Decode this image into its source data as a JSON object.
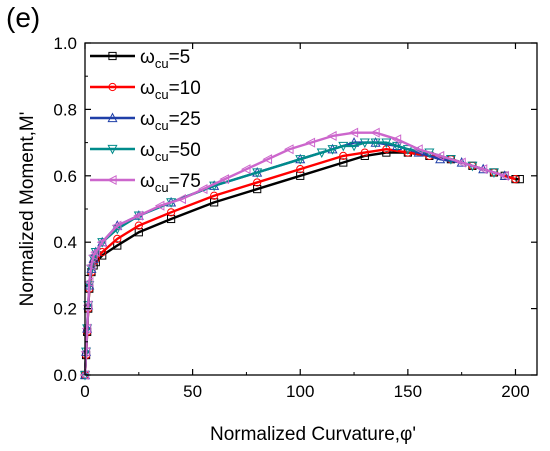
{
  "panel_label": "(e)",
  "chart_data": {
    "type": "line",
    "title": "",
    "xlabel": "Normalized Curvature,φ'",
    "ylabel": "Normalized Moment,M'",
    "xlim": [
      0,
      210
    ],
    "ylim": [
      0,
      1.0
    ],
    "xticks": [
      0,
      50,
      100,
      150,
      200
    ],
    "yticks": [
      0.0,
      0.2,
      0.4,
      0.6,
      0.8,
      1.0
    ],
    "xtick_labels": [
      "0",
      "50",
      "100",
      "150",
      "200"
    ],
    "ytick_labels": [
      "0.0",
      "0.2",
      "0.4",
      "0.6",
      "0.8",
      "1.0"
    ],
    "grid": false,
    "legend_position": "top-left",
    "series": [
      {
        "name": "ωcu=5",
        "legend_main": "ω",
        "legend_sub": "cu",
        "legend_rest": "=5",
        "color": "#000000",
        "marker": "square",
        "x": [
          0,
          0.5,
          1,
          1.5,
          2,
          3,
          4,
          5,
          8,
          15,
          25,
          40,
          60,
          80,
          100,
          120,
          130,
          140,
          150,
          160,
          170,
          180,
          190,
          195,
          200,
          202
        ],
        "y": [
          0,
          0.06,
          0.13,
          0.2,
          0.26,
          0.31,
          0.33,
          0.34,
          0.36,
          0.39,
          0.43,
          0.47,
          0.52,
          0.56,
          0.6,
          0.64,
          0.66,
          0.67,
          0.67,
          0.66,
          0.65,
          0.63,
          0.61,
          0.6,
          0.59,
          0.59
        ]
      },
      {
        "name": "ωcu=10",
        "legend_main": "ω",
        "legend_sub": "cu",
        "legend_rest": "=10",
        "color": "#ff0000",
        "marker": "circle",
        "x": [
          0,
          0.5,
          1,
          1.5,
          2,
          3,
          4,
          5,
          8,
          15,
          25,
          40,
          60,
          80,
          100,
          120,
          130,
          140,
          150,
          160,
          170,
          180,
          190,
          200
        ],
        "y": [
          0,
          0.06,
          0.13,
          0.2,
          0.26,
          0.31,
          0.34,
          0.35,
          0.37,
          0.41,
          0.45,
          0.49,
          0.54,
          0.58,
          0.62,
          0.66,
          0.67,
          0.68,
          0.67,
          0.66,
          0.65,
          0.63,
          0.61,
          0.59
        ]
      },
      {
        "name": "ωcu=25",
        "legend_main": "ω",
        "legend_sub": "cu",
        "legend_rest": "=25",
        "color": "#1f3fa8",
        "marker": "triangle-up",
        "x": [
          0,
          0.5,
          1,
          1.5,
          2,
          3,
          4,
          5,
          8,
          15,
          25,
          40,
          60,
          80,
          100,
          115,
          125,
          135,
          145,
          155,
          165,
          175,
          185,
          195
        ],
        "y": [
          0,
          0.07,
          0.14,
          0.21,
          0.27,
          0.32,
          0.35,
          0.37,
          0.4,
          0.45,
          0.48,
          0.52,
          0.57,
          0.61,
          0.65,
          0.68,
          0.7,
          0.7,
          0.69,
          0.67,
          0.65,
          0.64,
          0.62,
          0.6
        ]
      },
      {
        "name": "ωcu=50",
        "legend_main": "ω",
        "legend_sub": "cu",
        "legend_rest": "=50",
        "color": "#008b8b",
        "marker": "triangle-down",
        "x": [
          0,
          0.5,
          1,
          1.5,
          2,
          3,
          4,
          5,
          8,
          15,
          25,
          40,
          60,
          80,
          100,
          110,
          115,
          120,
          125,
          130,
          135,
          140,
          145,
          150,
          160,
          170,
          180,
          190
        ],
        "y": [
          0,
          0.07,
          0.14,
          0.21,
          0.27,
          0.32,
          0.35,
          0.37,
          0.4,
          0.44,
          0.48,
          0.52,
          0.57,
          0.61,
          0.65,
          0.67,
          0.68,
          0.69,
          0.69,
          0.7,
          0.7,
          0.7,
          0.69,
          0.68,
          0.67,
          0.65,
          0.63,
          0.61
        ]
      },
      {
        "name": "ωcu=75",
        "legend_main": "ω",
        "legend_sub": "cu",
        "legend_rest": "=75",
        "color": "#cc66cc",
        "marker": "triangle-left",
        "x": [
          0,
          0.5,
          1,
          1.5,
          2,
          3,
          4,
          5,
          8,
          15,
          25,
          35,
          45,
          55,
          65,
          75,
          85,
          95,
          105,
          115,
          125,
          135,
          145,
          155,
          165,
          175,
          185,
          195
        ],
        "y": [
          0,
          0.07,
          0.14,
          0.21,
          0.28,
          0.33,
          0.36,
          0.37,
          0.4,
          0.45,
          0.48,
          0.51,
          0.53,
          0.56,
          0.59,
          0.62,
          0.65,
          0.68,
          0.7,
          0.72,
          0.73,
          0.73,
          0.71,
          0.68,
          0.66,
          0.64,
          0.62,
          0.6
        ]
      }
    ]
  }
}
